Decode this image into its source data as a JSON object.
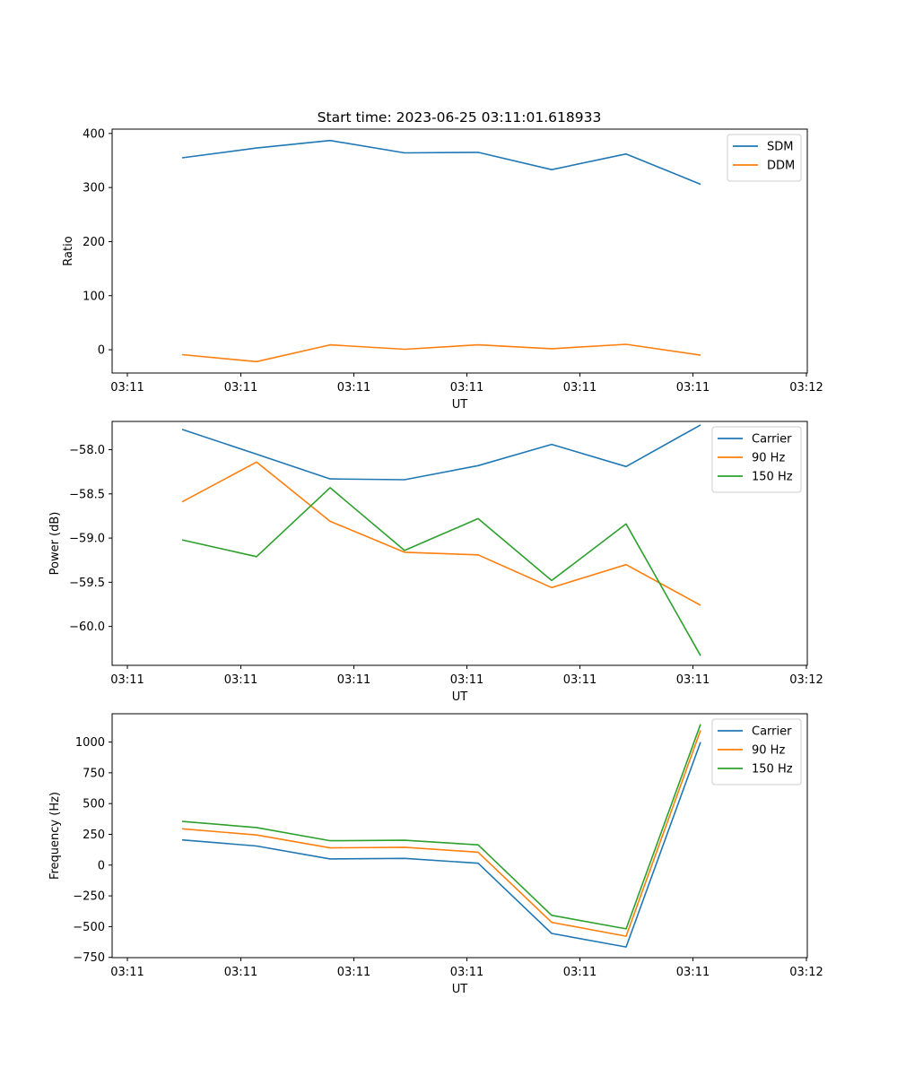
{
  "figure": {
    "title": "Start time: 2023-06-25 03:11:01.618933"
  },
  "chart_data": [
    {
      "type": "line",
      "title": "Start time: 2023-06-25 03:11:01.618933",
      "xlabel": "UT",
      "ylabel": "Ratio",
      "x_tick_labels": [
        "03:11",
        "03:11",
        "03:11",
        "03:11",
        "03:11",
        "03:11",
        "03:12"
      ],
      "y_ticks": [
        0,
        100,
        200,
        300,
        400
      ],
      "y_tick_labels": [
        "0",
        "100",
        "200",
        "300",
        "400"
      ],
      "ylim": [
        -43,
        408
      ],
      "legend_position": "top-right",
      "grid": false,
      "series": [
        {
          "name": "SDM",
          "color": "#1f77b4",
          "values": [
            355,
            373,
            387,
            364,
            365,
            333,
            362,
            306
          ]
        },
        {
          "name": "DDM",
          "color": "#ff7f0e",
          "values": [
            -9,
            -22,
            9,
            1,
            9,
            2,
            10,
            -10
          ]
        }
      ]
    },
    {
      "type": "line",
      "title": "",
      "xlabel": "UT",
      "ylabel": "Power (dB)",
      "x_tick_labels": [
        "03:11",
        "03:11",
        "03:11",
        "03:11",
        "03:11",
        "03:11",
        "03:12"
      ],
      "y_ticks": [
        -58.0,
        -58.5,
        -59.0,
        -59.5,
        -60.0
      ],
      "y_tick_labels": [
        "−58.0",
        "−58.5",
        "−59.0",
        "−59.5",
        "−60.0"
      ],
      "ylim": [
        -60.44,
        -57.68
      ],
      "legend_position": "top-right",
      "grid": false,
      "series": [
        {
          "name": "Carrier",
          "color": "#1f77b4",
          "values": [
            -57.77,
            -58.05,
            -58.33,
            -58.34,
            -58.18,
            -57.94,
            -58.19,
            -57.72
          ]
        },
        {
          "name": "90 Hz",
          "color": "#ff7f0e",
          "values": [
            -58.59,
            -58.14,
            -58.81,
            -59.16,
            -59.19,
            -59.56,
            -59.3,
            -59.76
          ]
        },
        {
          "name": "150 Hz",
          "color": "#2ca02c",
          "values": [
            -59.02,
            -59.21,
            -58.43,
            -59.14,
            -58.78,
            -59.48,
            -58.84,
            -60.33
          ]
        }
      ]
    },
    {
      "type": "line",
      "title": "",
      "xlabel": "UT",
      "ylabel": "Frequency (Hz)",
      "x_tick_labels": [
        "03:11",
        "03:11",
        "03:11",
        "03:11",
        "03:11",
        "03:11",
        "03:12"
      ],
      "y_ticks": [
        1000,
        750,
        500,
        250,
        0,
        -250,
        -500,
        -750
      ],
      "y_tick_labels": [
        "1000",
        "750",
        "500",
        "250",
        "0",
        "−250",
        "−500",
        "−750"
      ],
      "ylim": [
        -752,
        1230
      ],
      "legend_position": "top-right",
      "grid": false,
      "series": [
        {
          "name": "Carrier",
          "color": "#1f77b4",
          "values": [
            205,
            155,
            50,
            55,
            15,
            -555,
            -665,
            1000
          ]
        },
        {
          "name": "90 Hz",
          "color": "#ff7f0e",
          "values": [
            295,
            245,
            140,
            145,
            105,
            -465,
            -578,
            1095
          ]
        },
        {
          "name": "150 Hz",
          "color": "#2ca02c",
          "values": [
            355,
            305,
            198,
            202,
            165,
            -408,
            -518,
            1145
          ]
        }
      ]
    }
  ]
}
